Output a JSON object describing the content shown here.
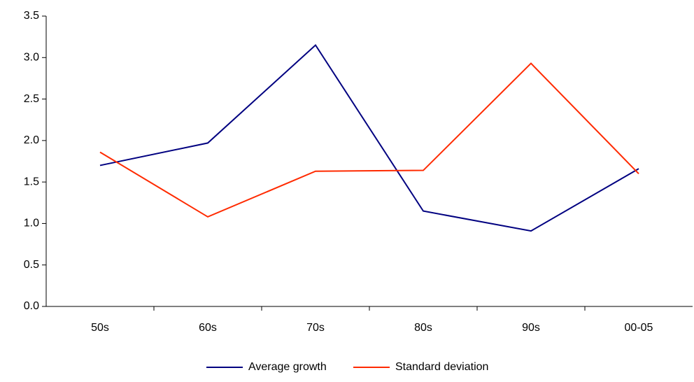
{
  "chart_data": {
    "type": "line",
    "categories": [
      "50s",
      "60s",
      "70s",
      "80s",
      "90s",
      "00-05"
    ],
    "series": [
      {
        "name": "Average growth",
        "color": "#000080",
        "values": [
          1.7,
          1.97,
          3.15,
          1.15,
          0.91,
          1.66
        ]
      },
      {
        "name": "Standard deviation",
        "color": "#ff2a00",
        "values": [
          1.86,
          1.08,
          1.63,
          1.64,
          2.93,
          1.6
        ]
      }
    ],
    "ylim": [
      0,
      3.5
    ],
    "yticks": [
      {
        "value": 0,
        "label": "0.0"
      },
      0.5,
      {
        "value": 1,
        "label": "1.0"
      },
      1.5,
      {
        "value": 2,
        "label": "2.0"
      },
      2.5,
      {
        "value": 3,
        "label": "3.0"
      },
      3.5
    ],
    "grid": false,
    "legend": "bottom"
  }
}
